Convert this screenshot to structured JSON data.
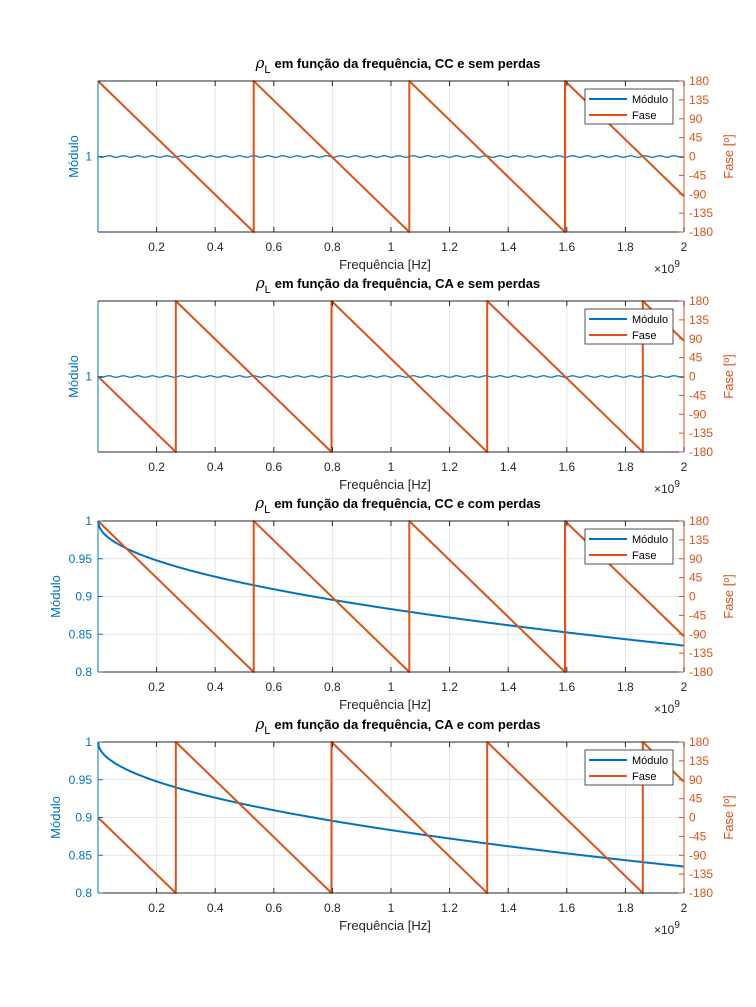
{
  "figure": {
    "colors": {
      "modulo": "#0072BD",
      "fase": "#D95319",
      "axis": "#262626",
      "grid": "#DFDFDF"
    }
  },
  "chart_data": [
    {
      "type": "line",
      "title_symbol": "ρ",
      "title_subscript": "L",
      "title": "em função da frequência, CC e sem perdas",
      "xlabel": "Frequência [Hz]",
      "x_exponent_base": "×10",
      "x_exponent": "9",
      "ylabel_left": "Módulo",
      "ylabel_right": "Fase [º]",
      "xlim": [
        0,
        2
      ],
      "ylim_left": [
        0.999,
        1.001
      ],
      "ylim_right": [
        -180,
        180
      ],
      "x_ticks": [
        "0.2",
        "0.4",
        "0.6",
        "0.8",
        "1",
        "1.2",
        "1.4",
        "1.6",
        "1.8",
        "2"
      ],
      "y_left_ticks": [
        "1"
      ],
      "y_left_tick_values": [
        1
      ],
      "y_right_ticks": [
        "180",
        "135",
        "90",
        "45",
        "0",
        "-45",
        "-90",
        "-135",
        "-180"
      ],
      "legend": [
        "Módulo",
        "Fase"
      ],
      "legend_position": "top-right",
      "grid": true,
      "series": [
        {
          "name": "Módulo",
          "kind": "constant",
          "value": 1,
          "noise": true
        },
        {
          "name": "Fase",
          "kind": "sawtooth",
          "phase_at_zero": 180,
          "period": 0.5313
        }
      ]
    },
    {
      "type": "line",
      "title_symbol": "ρ",
      "title_subscript": "L",
      "title": "em função da frequência, CA e sem perdas",
      "xlabel": "Frequência [Hz]",
      "x_exponent_base": "×10",
      "x_exponent": "9",
      "ylabel_left": "Módulo",
      "ylabel_right": "Fase [º]",
      "xlim": [
        0,
        2
      ],
      "ylim_left": [
        0.999,
        1.001
      ],
      "ylim_right": [
        -180,
        180
      ],
      "x_ticks": [
        "0.2",
        "0.4",
        "0.6",
        "0.8",
        "1",
        "1.2",
        "1.4",
        "1.6",
        "1.8",
        "2"
      ],
      "y_left_ticks": [
        "1"
      ],
      "y_left_tick_values": [
        1
      ],
      "y_right_ticks": [
        "180",
        "135",
        "90",
        "45",
        "0",
        "-45",
        "-90",
        "-135",
        "-180"
      ],
      "legend": [
        "Módulo",
        "Fase"
      ],
      "legend_position": "top-right",
      "grid": true,
      "series": [
        {
          "name": "Módulo",
          "kind": "constant",
          "value": 1,
          "noise": true
        },
        {
          "name": "Fase",
          "kind": "sawtooth",
          "phase_at_zero": 0,
          "period": 0.5313
        }
      ]
    },
    {
      "type": "line",
      "title_symbol": "ρ",
      "title_subscript": "L",
      "title": "em função da frequência, CC e com perdas",
      "xlabel": "Frequência [Hz]",
      "x_exponent_base": "×10",
      "x_exponent": "9",
      "ylabel_left": "Módulo",
      "ylabel_right": "Fase [º]",
      "xlim": [
        0,
        2
      ],
      "ylim_left": [
        0.8,
        1
      ],
      "ylim_right": [
        -180,
        180
      ],
      "x_ticks": [
        "0.2",
        "0.4",
        "0.6",
        "0.8",
        "1",
        "1.2",
        "1.4",
        "1.6",
        "1.8",
        "2"
      ],
      "y_left_ticks": [
        "1",
        "0.95",
        "0.9",
        "0.85",
        "0.8"
      ],
      "y_left_tick_values": [
        1,
        0.95,
        0.9,
        0.85,
        0.8
      ],
      "y_right_ticks": [
        "180",
        "135",
        "90",
        "45",
        "0",
        "-45",
        "-90",
        "-135",
        "-180"
      ],
      "legend": [
        "Módulo",
        "Fase"
      ],
      "legend_position": "top-right",
      "grid": true,
      "series": [
        {
          "name": "Módulo",
          "kind": "sqrt_decay",
          "value_at_zero": 1,
          "value_at_end": 0.835
        },
        {
          "name": "Fase",
          "kind": "sawtooth",
          "phase_at_zero": 180,
          "period": 0.5313
        }
      ]
    },
    {
      "type": "line",
      "title_symbol": "ρ",
      "title_subscript": "L",
      "title": "em função da frequência, CA e com perdas",
      "xlabel": "Frequência [Hz]",
      "x_exponent_base": "×10",
      "x_exponent": "9",
      "ylabel_left": "Módulo",
      "ylabel_right": "Fase [º]",
      "xlim": [
        0,
        2
      ],
      "ylim_left": [
        0.8,
        1
      ],
      "ylim_right": [
        -180,
        180
      ],
      "x_ticks": [
        "0.2",
        "0.4",
        "0.6",
        "0.8",
        "1",
        "1.2",
        "1.4",
        "1.6",
        "1.8",
        "2"
      ],
      "y_left_ticks": [
        "1",
        "0.95",
        "0.9",
        "0.85",
        "0.8"
      ],
      "y_left_tick_values": [
        1,
        0.95,
        0.9,
        0.85,
        0.8
      ],
      "y_right_ticks": [
        "180",
        "135",
        "90",
        "45",
        "0",
        "-45",
        "-90",
        "-135",
        "-180"
      ],
      "legend": [
        "Módulo",
        "Fase"
      ],
      "legend_position": "top-right",
      "grid": true,
      "series": [
        {
          "name": "Módulo",
          "kind": "sqrt_decay",
          "value_at_zero": 1,
          "value_at_end": 0.835
        },
        {
          "name": "Fase",
          "kind": "sawtooth",
          "phase_at_zero": 0,
          "period": 0.5313
        }
      ]
    }
  ]
}
